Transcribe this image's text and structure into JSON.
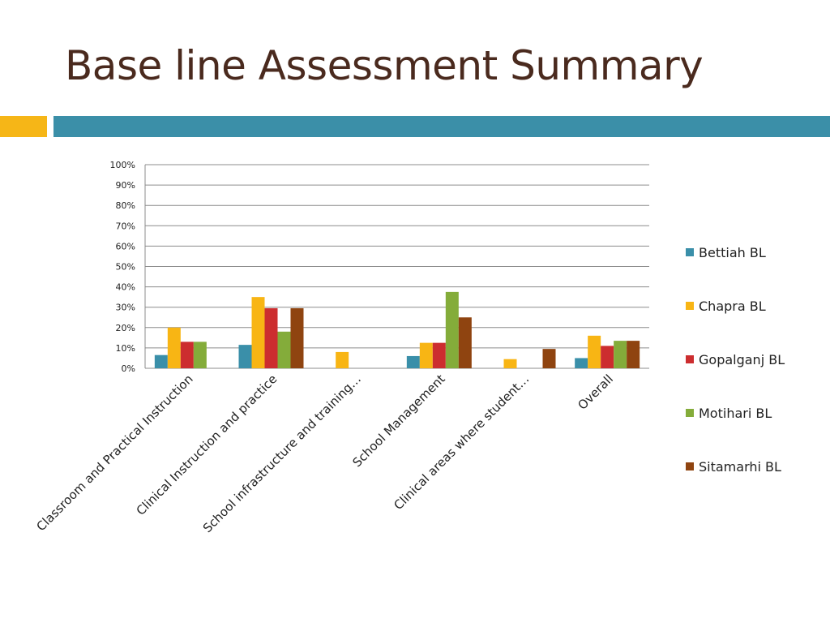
{
  "slide": {
    "title": "Base line Assessment Summary"
  },
  "colors": {
    "title": "#4a2a1e",
    "accent_orange": "#f6b617",
    "accent_teal": "#3b8fa8"
  },
  "chart_data": {
    "type": "bar",
    "title": "",
    "xlabel": "",
    "ylabel": "",
    "ylim": [
      0,
      100
    ],
    "y_ticks": [
      "0%",
      "10%",
      "20%",
      "30%",
      "40%",
      "50%",
      "60%",
      "70%",
      "80%",
      "90%",
      "100%"
    ],
    "grid": true,
    "legend_position": "right",
    "categories": [
      "Classroom and Practical Instruction",
      "Clinical Instruction and practice",
      "School infrastructure and training…",
      "School Management",
      "Clinical areas where student…",
      "Overall"
    ],
    "series": [
      {
        "name": "Bettiah BL",
        "color": "#3a8fa9",
        "values": [
          6.5,
          11.5,
          0,
          6,
          0,
          5
        ]
      },
      {
        "name": "Chapra BL",
        "color": "#f8b514",
        "values": [
          20,
          35,
          8,
          12.5,
          4.5,
          16
        ]
      },
      {
        "name": "Gopalganj BL",
        "color": "#cc2d2f",
        "values": [
          13,
          29.5,
          0,
          12.5,
          0,
          11
        ]
      },
      {
        "name": "Motihari BL",
        "color": "#84ac3a",
        "values": [
          13,
          18,
          0,
          37.5,
          0,
          13.5
        ]
      },
      {
        "name": "Sitamarhi BL",
        "color": "#8f4410",
        "values": [
          0,
          29.5,
          0,
          25,
          9.5,
          13.5
        ]
      }
    ]
  }
}
